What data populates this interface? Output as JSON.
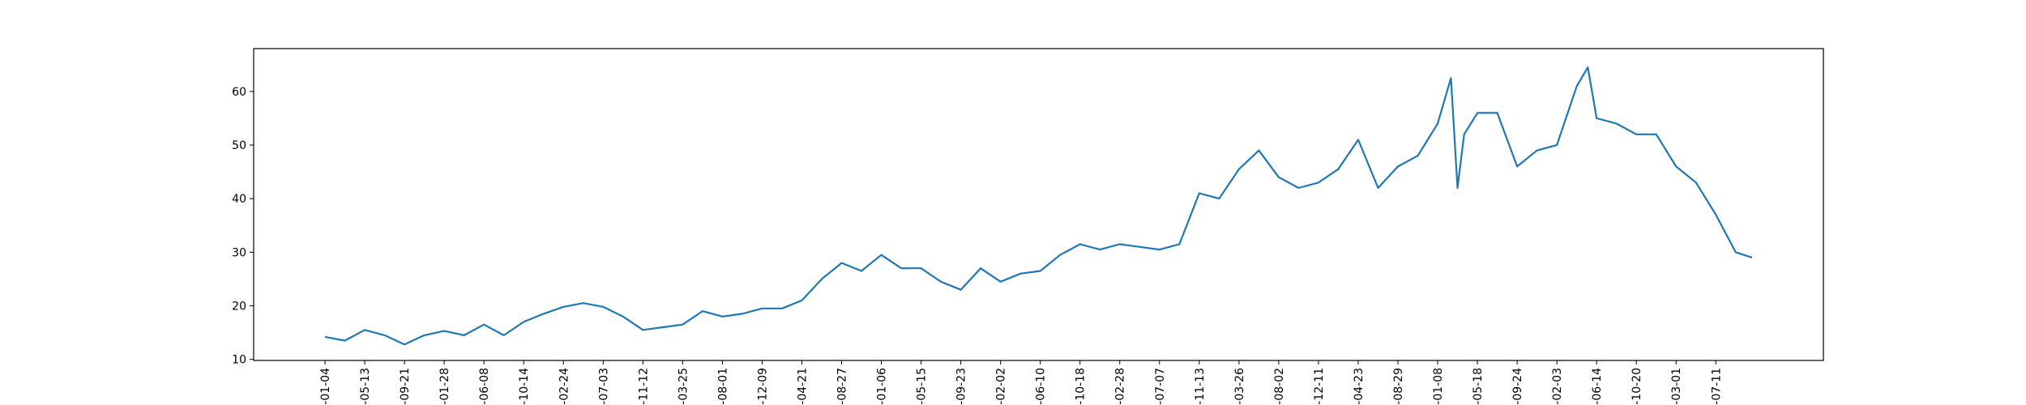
{
  "chart_data": {
    "type": "line",
    "x": [
      0,
      45,
      90,
      135,
      180,
      225,
      270,
      315,
      360,
      405,
      450,
      495,
      540,
      585,
      630,
      675,
      720,
      765,
      810,
      855,
      900,
      945,
      990,
      1035,
      1080,
      1125,
      1170,
      1215,
      1260,
      1305,
      1350,
      1395,
      1440,
      1485,
      1530,
      1575,
      1620,
      1665,
      1710,
      1755,
      1800,
      1845,
      1890,
      1935,
      1980,
      2025,
      2070,
      2115,
      2160,
      2205,
      2250,
      2295,
      2340,
      2385,
      2430,
      2475,
      2520,
      2550,
      2565,
      2580,
      2610,
      2655,
      2700,
      2745,
      2790,
      2835,
      2860,
      2880,
      2925,
      2970,
      3015,
      3060,
      3105,
      3150,
      3195,
      3232
    ],
    "values": [
      14.2,
      13.5,
      15.5,
      14.5,
      12.8,
      14.5,
      15.3,
      14.5,
      16.5,
      14.5,
      17,
      18.5,
      19.8,
      20.5,
      19.8,
      18,
      15.5,
      16,
      16.5,
      19,
      18,
      18.5,
      19.5,
      19.5,
      21,
      25,
      28,
      26.5,
      29.5,
      27,
      27,
      24.5,
      23,
      27,
      24.5,
      26,
      26.5,
      29.5,
      31.5,
      30.5,
      31.5,
      31,
      30.5,
      31.5,
      41,
      40,
      45.5,
      49,
      44,
      42,
      43,
      45.5,
      51,
      42,
      46,
      48,
      54,
      62.5,
      42,
      52,
      56,
      56,
      46,
      49,
      50,
      61,
      64.5,
      55,
      54,
      52,
      52,
      46,
      43,
      37,
      30,
      29
    ],
    "color": "#1f77b4",
    "xlim": [
      -161.6,
      3393.6
    ],
    "xticks": [
      {
        "value": 0,
        "label": "-01-04"
      },
      {
        "value": 90,
        "label": "-05-13"
      },
      {
        "value": 180,
        "label": "-09-21"
      },
      {
        "value": 270,
        "label": "-01-28"
      },
      {
        "value": 360,
        "label": "-06-08"
      },
      {
        "value": 450,
        "label": "-10-14"
      },
      {
        "value": 540,
        "label": "-02-24"
      },
      {
        "value": 630,
        "label": "-07-03"
      },
      {
        "value": 720,
        "label": "-11-12"
      },
      {
        "value": 810,
        "label": "-03-25"
      },
      {
        "value": 900,
        "label": "-08-01"
      },
      {
        "value": 990,
        "label": "-12-09"
      },
      {
        "value": 1080,
        "label": "-04-21"
      },
      {
        "value": 1170,
        "label": "-08-27"
      },
      {
        "value": 1260,
        "label": "-01-06"
      },
      {
        "value": 1350,
        "label": "-05-15"
      },
      {
        "value": 1440,
        "label": "-09-23"
      },
      {
        "value": 1530,
        "label": "-02-02"
      },
      {
        "value": 1620,
        "label": "-06-10"
      },
      {
        "value": 1710,
        "label": "-10-18"
      },
      {
        "value": 1800,
        "label": "-02-28"
      },
      {
        "value": 1890,
        "label": "-07-07"
      },
      {
        "value": 1980,
        "label": "-11-13"
      },
      {
        "value": 2070,
        "label": "-03-26"
      },
      {
        "value": 2160,
        "label": "-08-02"
      },
      {
        "value": 2250,
        "label": "-12-11"
      },
      {
        "value": 2340,
        "label": "-04-23"
      },
      {
        "value": 2430,
        "label": "-08-29"
      },
      {
        "value": 2520,
        "label": "-01-08"
      },
      {
        "value": 2610,
        "label": "-05-18"
      },
      {
        "value": 2700,
        "label": "-09-24"
      },
      {
        "value": 2790,
        "label": "-02-03"
      },
      {
        "value": 2880,
        "label": "-06-14"
      },
      {
        "value": 2970,
        "label": "-10-20"
      },
      {
        "value": 3060,
        "label": "-03-01"
      },
      {
        "value": 3150,
        "label": "-07-11"
      }
    ],
    "ylim": [
      9.8,
      68
    ],
    "yticks": [
      10,
      20,
      30,
      40,
      50,
      60
    ]
  }
}
